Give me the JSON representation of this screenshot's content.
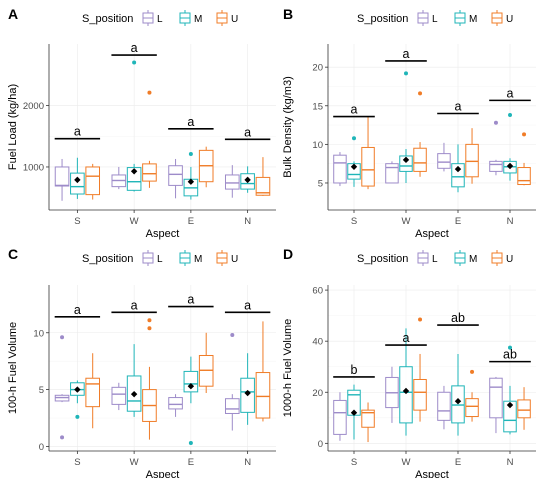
{
  "figure": {
    "legend_title": "S_position",
    "legend_items": [
      {
        "label": "L",
        "color": "#9D8BC9"
      },
      {
        "label": "M",
        "color": "#1FB5B8"
      },
      {
        "label": "U",
        "color": "#F07C27"
      }
    ],
    "mean_marker_color": "#000000",
    "outlier_note": "colored dots are outliers; black diamond marks the mean"
  },
  "chart_data": [
    {
      "panel": "A",
      "type": "boxplot",
      "title": "",
      "xlabel": "Aspect",
      "ylabel": "Fuel Load (kg/ha)",
      "categories": [
        "S",
        "W",
        "E",
        "N"
      ],
      "ylim": [
        300,
        3000
      ],
      "yticks": [
        1000,
        2000
      ],
      "grid": true,
      "legend": "top",
      "series": [
        {
          "name": "L",
          "boxes": [
            {
              "min": 450,
              "q1": 690,
              "median": 700,
              "q3": 1000,
              "max": 1130,
              "outliers": []
            },
            {
              "min": 640,
              "q1": 680,
              "median": 780,
              "q3": 870,
              "max": 1000,
              "outliers": []
            },
            {
              "min": 490,
              "q1": 700,
              "median": 880,
              "q3": 1020,
              "max": 1130,
              "outliers": []
            },
            {
              "min": 500,
              "q1": 640,
              "median": 740,
              "q3": 870,
              "max": 1030,
              "outliers": []
            }
          ]
        },
        {
          "name": "M",
          "boxes": [
            {
              "min": 480,
              "q1": 560,
              "median": 680,
              "q3": 900,
              "max": 1150,
              "outliers": []
            },
            {
              "min": 600,
              "q1": 620,
              "median": 760,
              "q3": 990,
              "max": 1050,
              "outliers": [
                2700
              ]
            },
            {
              "min": 470,
              "q1": 530,
              "median": 660,
              "q3": 800,
              "max": 1000,
              "outliers": [
                1210
              ]
            },
            {
              "min": 580,
              "q1": 640,
              "median": 730,
              "q3": 890,
              "max": 1010,
              "outliers": []
            }
          ]
        },
        {
          "name": "U",
          "boxes": [
            {
              "min": 470,
              "q1": 550,
              "median": 850,
              "q3": 1000,
              "max": 1050,
              "outliers": []
            },
            {
              "min": 660,
              "q1": 770,
              "median": 890,
              "q3": 1050,
              "max": 1100,
              "outliers": [
                2210
              ]
            },
            {
              "min": 670,
              "q1": 760,
              "median": 1020,
              "q3": 1270,
              "max": 1330,
              "outliers": []
            },
            {
              "min": 530,
              "q1": 540,
              "median": 580,
              "q3": 830,
              "max": 1160,
              "outliers": []
            }
          ]
        }
      ],
      "means": [
        790,
        930,
        760,
        790
      ],
      "significance": [
        "a",
        "a",
        "a",
        "a"
      ],
      "significance_y": [
        1460,
        2820,
        1620,
        1450
      ]
    },
    {
      "panel": "B",
      "type": "boxplot",
      "title": "",
      "xlabel": "Aspect",
      "ylabel": "Bulk Density (kg/m3)",
      "categories": [
        "S",
        "W",
        "E",
        "N"
      ],
      "ylim": [
        1.5,
        23
      ],
      "yticks": [
        5,
        10,
        15,
        20
      ],
      "grid": true,
      "legend": "top",
      "series": [
        {
          "name": "L",
          "boxes": [
            {
              "min": 4.6,
              "q1": 5.0,
              "median": 7.6,
              "q3": 8.6,
              "max": 9.0,
              "outliers": []
            },
            {
              "min": 5.0,
              "q1": 5.0,
              "median": 7.0,
              "q3": 7.5,
              "max": 7.8,
              "outliers": []
            },
            {
              "min": 6.5,
              "q1": 6.9,
              "median": 7.7,
              "q3": 8.8,
              "max": 10.2,
              "outliers": []
            },
            {
              "min": 6.0,
              "q1": 6.5,
              "median": 7.4,
              "q3": 7.8,
              "max": 8.0,
              "outliers": [
                12.8
              ]
            }
          ]
        },
        {
          "name": "M",
          "boxes": [
            {
              "min": 4.5,
              "q1": 5.5,
              "median": 6.1,
              "q3": 7.5,
              "max": 7.8,
              "outliers": [
                10.8
              ]
            },
            {
              "min": 5.0,
              "q1": 6.5,
              "median": 7.2,
              "q3": 8.5,
              "max": 9.4,
              "outliers": [
                19.2
              ]
            },
            {
              "min": 3.8,
              "q1": 4.5,
              "median": 5.8,
              "q3": 7.5,
              "max": 10.0,
              "outliers": []
            },
            {
              "min": 5.3,
              "q1": 6.3,
              "median": 7.1,
              "q3": 7.8,
              "max": 8.2,
              "outliers": [
                13.8
              ]
            }
          ]
        },
        {
          "name": "U",
          "boxes": [
            {
              "min": 4.2,
              "q1": 4.6,
              "median": 6.7,
              "q3": 9.6,
              "max": 13.6,
              "outliers": []
            },
            {
              "min": 5.8,
              "q1": 6.5,
              "median": 7.6,
              "q3": 9.5,
              "max": 10.3,
              "outliers": [
                16.6
              ]
            },
            {
              "min": 4.9,
              "q1": 5.8,
              "median": 7.8,
              "q3": 10.0,
              "max": 12.1,
              "outliers": []
            },
            {
              "min": 4.7,
              "q1": 4.8,
              "median": 5.3,
              "q3": 7.0,
              "max": 7.6,
              "outliers": [
                11.3
              ]
            }
          ]
        }
      ],
      "means": [
        7.1,
        8.0,
        6.8,
        7.2
      ],
      "significance": [
        "a",
        "a",
        "a",
        "a"
      ],
      "significance_y": [
        13.6,
        20.8,
        14.0,
        15.7
      ]
    },
    {
      "panel": "C",
      "type": "boxplot",
      "title": "",
      "xlabel": "Aspect",
      "ylabel": "100-h Fuel Volume",
      "categories": [
        "S",
        "W",
        "E",
        "N"
      ],
      "ylim": [
        -0.4,
        14.2
      ],
      "yticks": [
        0,
        5,
        10
      ],
      "grid": true,
      "legend": "top",
      "series": [
        {
          "name": "L",
          "boxes": [
            {
              "min": 3.9,
              "q1": 4.0,
              "median": 4.3,
              "q3": 4.5,
              "max": 4.6,
              "outliers": [
                9.6,
                0.8
              ]
            },
            {
              "min": 3.2,
              "q1": 3.7,
              "median": 4.6,
              "q3": 5.2,
              "max": 5.6,
              "outliers": []
            },
            {
              "min": 2.6,
              "q1": 3.3,
              "median": 3.7,
              "q3": 4.3,
              "max": 4.6,
              "outliers": []
            },
            {
              "min": 1.4,
              "q1": 2.9,
              "median": 3.3,
              "q3": 4.2,
              "max": 4.6,
              "outliers": [
                9.8
              ]
            }
          ]
        },
        {
          "name": "M",
          "boxes": [
            {
              "min": 3.8,
              "q1": 4.5,
              "median": 5.0,
              "q3": 5.6,
              "max": 5.8,
              "outliers": [
                2.6
              ]
            },
            {
              "min": 2.6,
              "q1": 3.1,
              "median": 4.0,
              "q3": 6.2,
              "max": 9.0,
              "outliers": []
            },
            {
              "min": 3.8,
              "q1": 4.8,
              "median": 5.5,
              "q3": 6.6,
              "max": 7.9,
              "outliers": [
                0.3
              ]
            },
            {
              "min": 1.9,
              "q1": 3.0,
              "median": 4.8,
              "q3": 6.0,
              "max": 8.2,
              "outliers": []
            }
          ]
        },
        {
          "name": "U",
          "boxes": [
            {
              "min": 1.6,
              "q1": 3.5,
              "median": 5.5,
              "q3": 6.0,
              "max": 8.2,
              "outliers": []
            },
            {
              "min": 0.6,
              "q1": 2.2,
              "median": 3.6,
              "q3": 5.0,
              "max": 7.0,
              "outliers": [
                11.1,
                10.4
              ]
            },
            {
              "min": 4.7,
              "q1": 5.3,
              "median": 6.7,
              "q3": 8.0,
              "max": 10.0,
              "outliers": []
            },
            {
              "min": 2.2,
              "q1": 2.5,
              "median": 4.4,
              "q3": 6.5,
              "max": 11.0,
              "outliers": []
            }
          ]
        }
      ],
      "means": [
        5.0,
        4.6,
        5.3,
        4.7
      ],
      "significance": [
        "a",
        "a",
        "a",
        "a"
      ],
      "significance_y": [
        11.4,
        11.8,
        12.3,
        11.8
      ]
    },
    {
      "panel": "D",
      "type": "boxplot",
      "title": "",
      "xlabel": "Aspect",
      "ylabel": "1000-h Fuel Volume",
      "categories": [
        "S",
        "W",
        "E",
        "N"
      ],
      "ylim": [
        -3,
        62
      ],
      "yticks": [
        0,
        20,
        40,
        60
      ],
      "grid": true,
      "legend": "top",
      "series": [
        {
          "name": "L",
          "boxes": [
            {
              "min": 1.0,
              "q1": 3.5,
              "median": 12.0,
              "q3": 16.8,
              "max": 20.0,
              "outliers": []
            },
            {
              "min": 8.0,
              "q1": 14.0,
              "median": 19.8,
              "q3": 25.8,
              "max": 30.0,
              "outliers": []
            },
            {
              "min": 5.5,
              "q1": 9.0,
              "median": 12.7,
              "q3": 20.0,
              "max": 22.5,
              "outliers": []
            },
            {
              "min": 4.0,
              "q1": 10.0,
              "median": 22.0,
              "q3": 25.5,
              "max": 26.0,
              "outliers": []
            }
          ]
        },
        {
          "name": "M",
          "boxes": [
            {
              "min": 1.5,
              "q1": 11.0,
              "median": 19.0,
              "q3": 20.8,
              "max": 23.0,
              "outliers": []
            },
            {
              "min": 3.0,
              "q1": 8.0,
              "median": 20.0,
              "q3": 30.0,
              "max": 45.0,
              "outliers": []
            },
            {
              "min": 3.0,
              "q1": 8.0,
              "median": 15.0,
              "q3": 22.5,
              "max": 35.0,
              "outliers": []
            },
            {
              "min": 3.5,
              "q1": 4.5,
              "median": 9.0,
              "q3": 16.5,
              "max": 22.5,
              "outliers": [
                37.5
              ]
            }
          ]
        },
        {
          "name": "U",
          "boxes": [
            {
              "min": 0.5,
              "q1": 6.3,
              "median": 12.0,
              "q3": 13.0,
              "max": 16.0,
              "outliers": []
            },
            {
              "min": 8.5,
              "q1": 13.0,
              "median": 20.0,
              "q3": 25.0,
              "max": 35.0,
              "outliers": [
                48.5
              ]
            },
            {
              "min": 8.5,
              "q1": 10.5,
              "median": 14.5,
              "q3": 17.5,
              "max": 20.0,
              "outliers": [
                28.0
              ]
            },
            {
              "min": 5.3,
              "q1": 10.0,
              "median": 13.0,
              "q3": 17.0,
              "max": 22.0,
              "outliers": []
            }
          ]
        }
      ],
      "means": [
        12.0,
        20.5,
        16.5,
        15.0
      ],
      "significance": [
        "b",
        "a",
        "ab",
        "ab"
      ],
      "significance_y": [
        26.0,
        38.5,
        46.3,
        32.0
      ]
    }
  ]
}
